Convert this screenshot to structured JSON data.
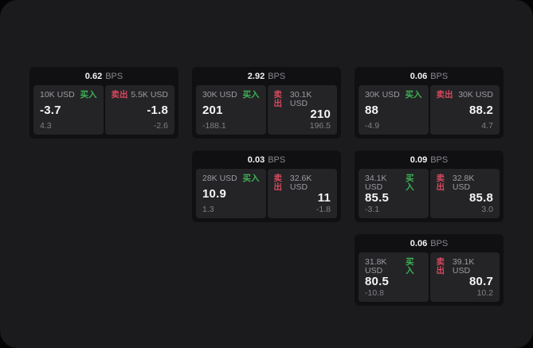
{
  "labels": {
    "bps_unit": "BPS",
    "buy": "买入",
    "sell": "卖出"
  },
  "colors": {
    "window_bg": "#1b1b1d",
    "card_bg": "#101013",
    "subpanel_bg": "#242427",
    "buy_green": "#3bb254",
    "sell_red": "#d4495e",
    "primary_text": "#f5f5f7",
    "muted_text": "#9b9ba0"
  },
  "cards": [
    {
      "row": 1,
      "col": 1,
      "bps": "0.62",
      "buy": {
        "notional": "10K USD",
        "price": "-3.7",
        "delta": "4.3"
      },
      "sell": {
        "notional": "5.5K USD",
        "price": "-1.8",
        "delta": "-2.6"
      }
    },
    {
      "row": 1,
      "col": 2,
      "bps": "2.92",
      "buy": {
        "notional": "30K USD",
        "price": "201",
        "delta": "-188.1"
      },
      "sell": {
        "notional": "30.1K USD",
        "price": "210",
        "delta": "196.5"
      }
    },
    {
      "row": 1,
      "col": 3,
      "bps": "0.06",
      "buy": {
        "notional": "30K USD",
        "price": "88",
        "delta": "-4.9"
      },
      "sell": {
        "notional": "30K USD",
        "price": "88.2",
        "delta": "4.7"
      }
    },
    {
      "row": 2,
      "col": 2,
      "bps": "0.03",
      "buy": {
        "notional": "28K USD",
        "price": "10.9",
        "delta": "1.3"
      },
      "sell": {
        "notional": "32.6K USD",
        "price": "11",
        "delta": "-1.8"
      }
    },
    {
      "row": 2,
      "col": 3,
      "bps": "0.09",
      "buy": {
        "notional": "34.1K USD",
        "price": "85.5",
        "delta": "-3.1"
      },
      "sell": {
        "notional": "32.8K USD",
        "price": "85.8",
        "delta": "3.0"
      }
    },
    {
      "row": 3,
      "col": 3,
      "bps": "0.06",
      "buy": {
        "notional": "31.8K USD",
        "price": "80.5",
        "delta": "-10.8"
      },
      "sell": {
        "notional": "39.1K USD",
        "price": "80.7",
        "delta": "10.2"
      }
    }
  ]
}
